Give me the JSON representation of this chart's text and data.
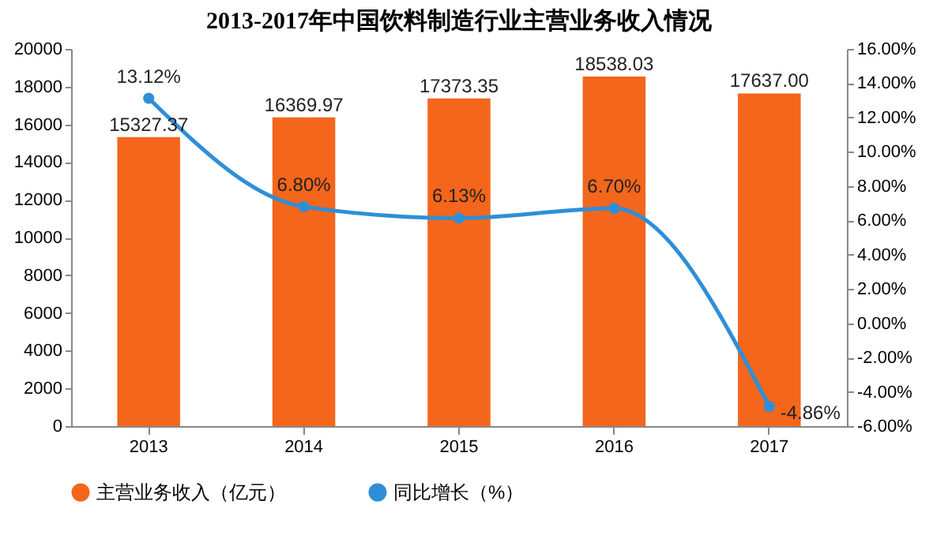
{
  "chart_data": {
    "type": "bar",
    "title": "2013-2017年中国饮料制造行业主营业务收入情况",
    "categories": [
      "2013",
      "2014",
      "2015",
      "2016",
      "2017"
    ],
    "series": [
      {
        "name": "主营业务收入（亿元）",
        "color": "#f4661b",
        "values": [
          15327.37,
          16369.97,
          17373.35,
          18538.03,
          17637.0
        ],
        "value_labels": [
          "15327.37",
          "16369.97",
          "17373.35",
          "18538.03",
          "17637.00"
        ]
      },
      {
        "name": "同比增长（%）",
        "type": "line",
        "axis": "y2",
        "color": "#2e8fd8",
        "values": [
          13.12,
          6.8,
          6.13,
          6.7,
          -4.86
        ],
        "value_labels": [
          "13.12%",
          "6.80%",
          "6.13%",
          "6.70%",
          "-4.86%"
        ]
      }
    ],
    "ylim": [
      0,
      20000
    ],
    "yticks": [
      0,
      2000,
      4000,
      6000,
      8000,
      10000,
      12000,
      14000,
      16000,
      18000,
      20000
    ],
    "y2lim": [
      -6,
      16
    ],
    "y2ticks": [
      {
        "value": -6,
        "label": "-6.00%"
      },
      {
        "value": -4,
        "label": "-4.00%"
      },
      {
        "value": -2,
        "label": "-2.00%"
      },
      {
        "value": 0,
        "label": "0.00%"
      },
      {
        "value": 2,
        "label": "2.00%"
      },
      {
        "value": 4,
        "label": "4.00%"
      },
      {
        "value": 6,
        "label": "6.00%"
      },
      {
        "value": 8,
        "label": "8.00%"
      },
      {
        "value": 10,
        "label": "10.00%"
      },
      {
        "value": 12,
        "label": "12.00%"
      },
      {
        "value": 14,
        "label": "14.00%"
      },
      {
        "value": 16,
        "label": "16.00%"
      }
    ],
    "legend": "bottom",
    "marker": "circle",
    "line_style": "solid",
    "grid": false
  }
}
